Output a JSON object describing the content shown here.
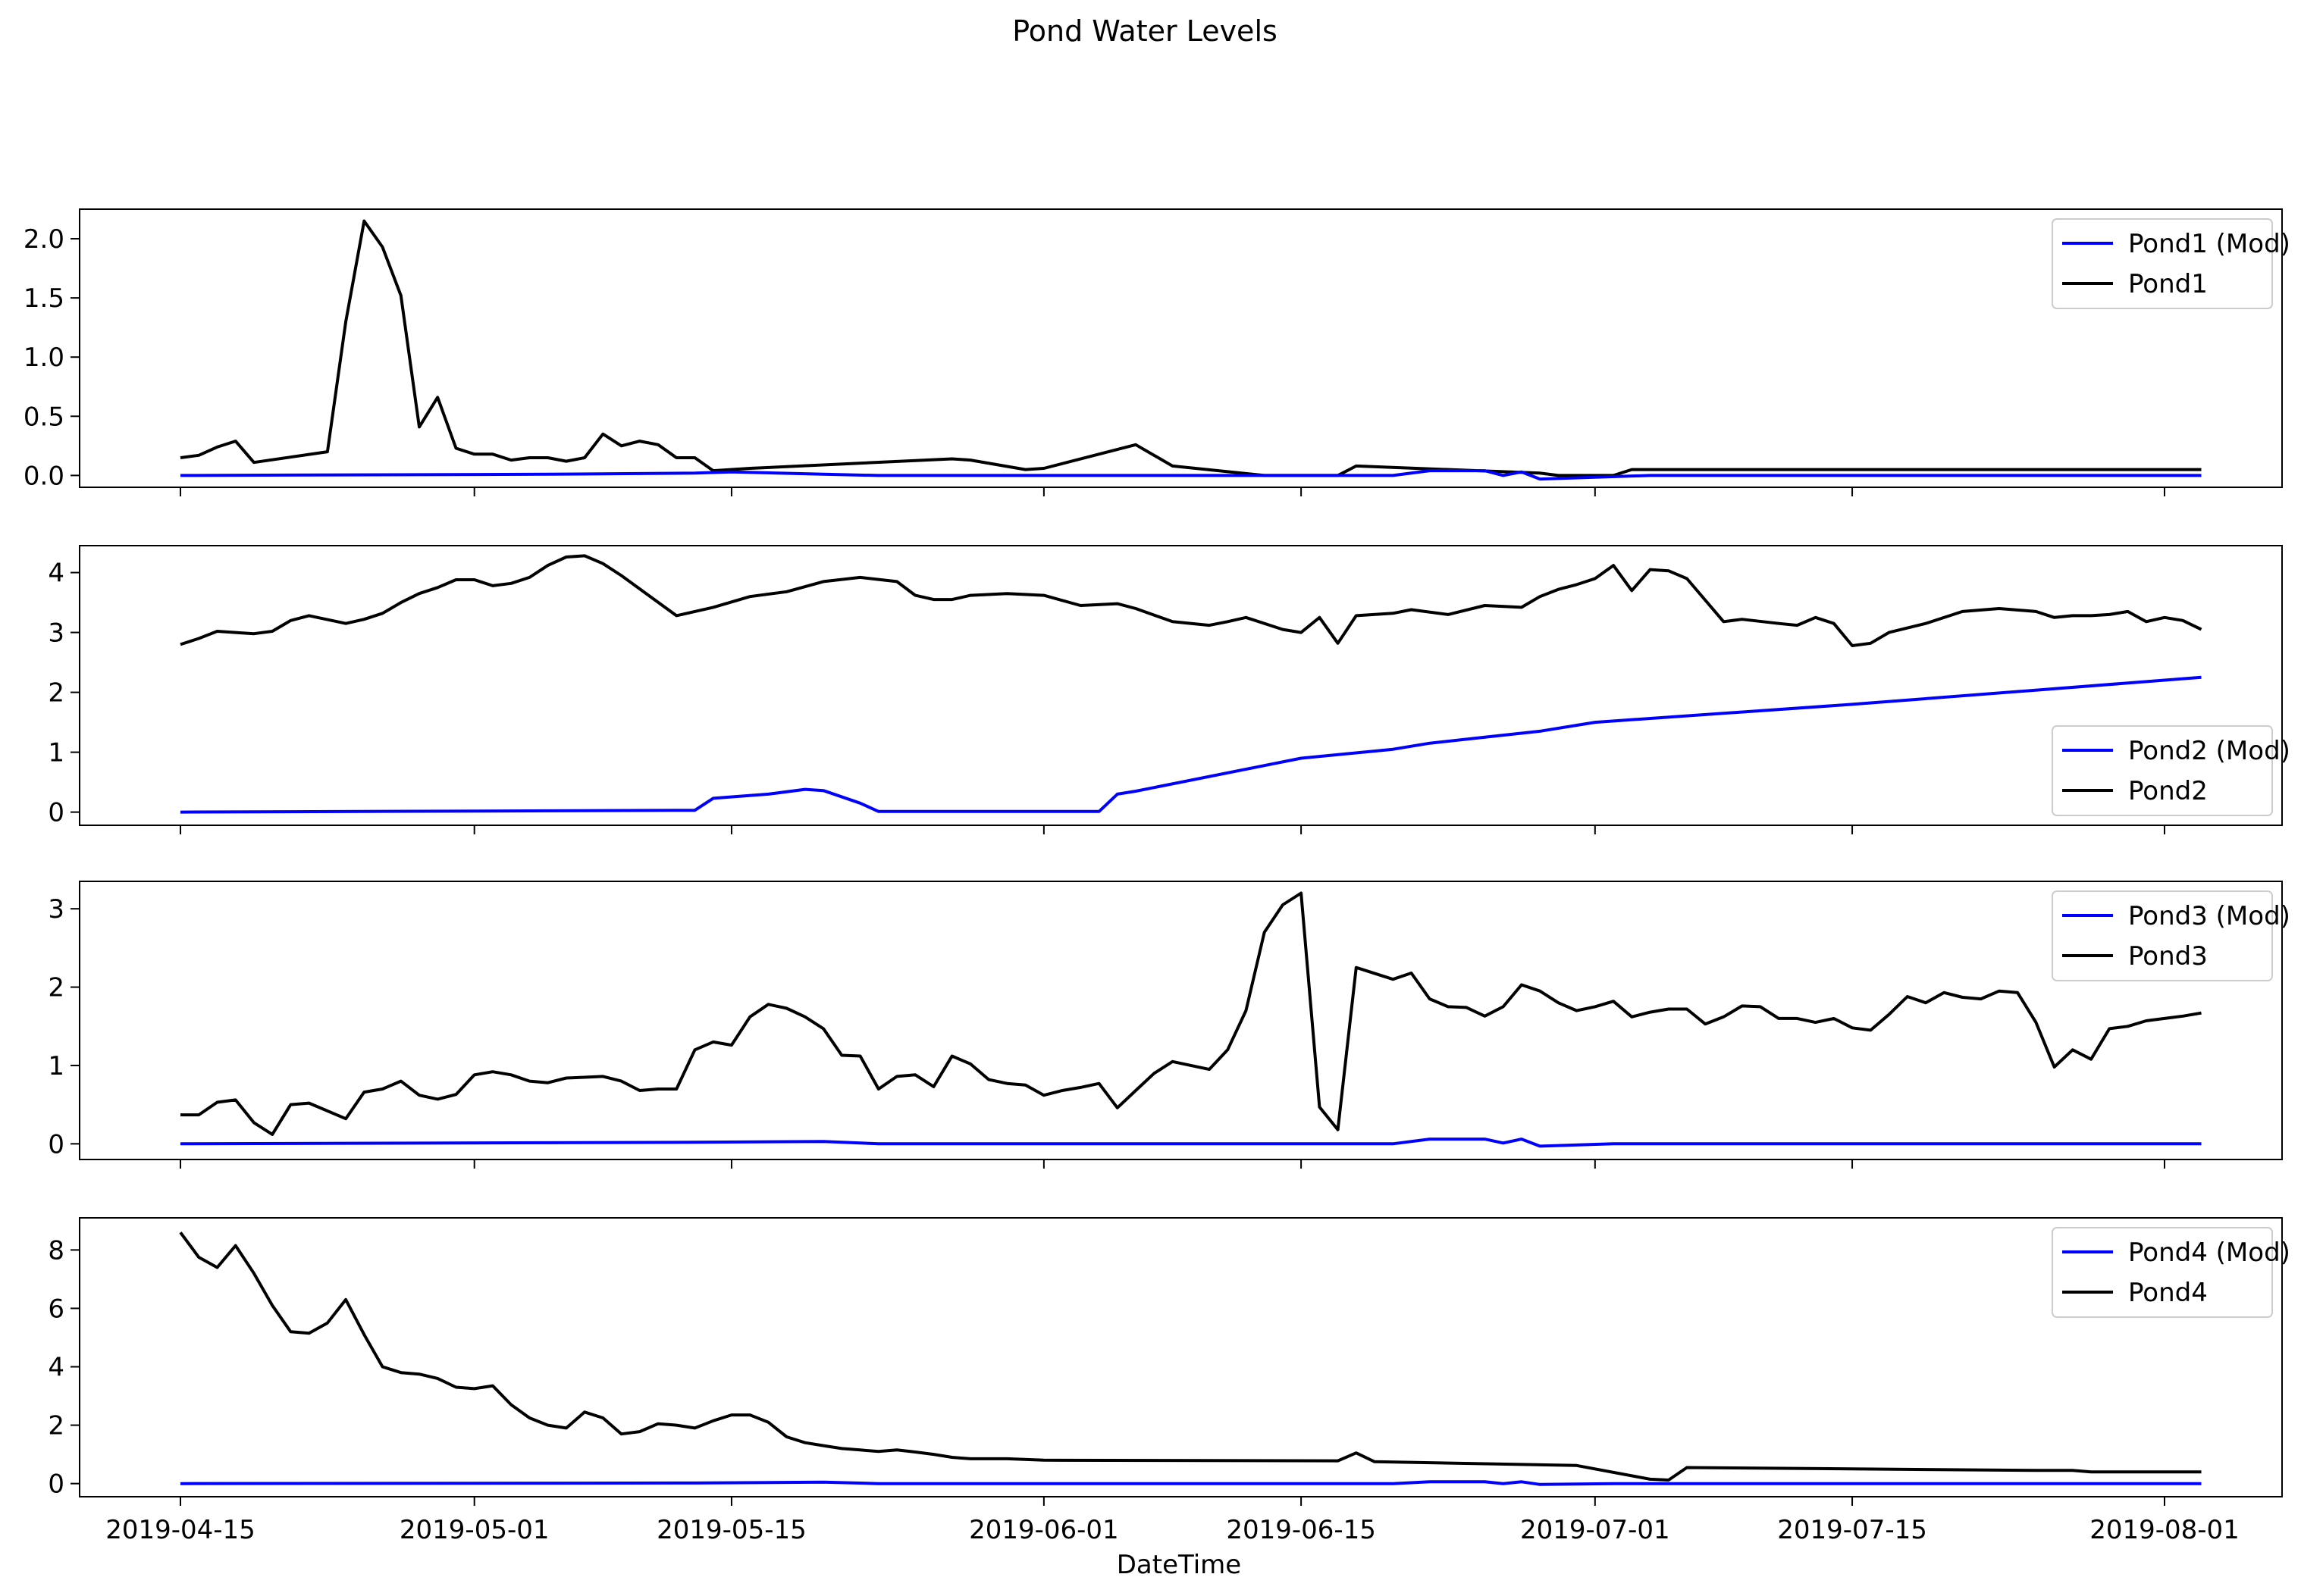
{
  "figure": {
    "title": "Pond Water Levels",
    "xlabel": "DateTime",
    "x_tick_labels": [
      "2019-04-15",
      "2019-05-01",
      "2019-05-15",
      "2019-06-01",
      "2019-06-15",
      "2019-07-01",
      "2019-07-15",
      "2019-08-01"
    ]
  },
  "chart_data": [
    {
      "type": "line",
      "legend": "upper right",
      "ylim": [
        -0.1,
        2.25
      ],
      "yticks": [
        0.0,
        0.5,
        1.0,
        1.5,
        2.0
      ],
      "ytick_labels": [
        "0.0",
        "0.5",
        "1.0",
        "1.5",
        "2.0"
      ],
      "series": [
        {
          "name": "Pond1 (Mod)",
          "color": "#0000ff",
          "x": [
            "2019-04-15",
            "2019-05-05",
            "2019-05-13",
            "2019-05-15",
            "2019-05-20",
            "2019-05-23",
            "2019-06-05",
            "2019-06-20",
            "2019-06-22",
            "2019-06-25",
            "2019-06-26",
            "2019-06-27",
            "2019-06-28",
            "2019-07-04",
            "2019-08-03"
          ],
          "y": [
            0.0,
            0.01,
            0.02,
            0.03,
            0.01,
            0.0,
            0.0,
            0.0,
            0.04,
            0.04,
            0.0,
            0.03,
            -0.03,
            0.0,
            0.0
          ]
        },
        {
          "name": "Pond1",
          "color": "#000000",
          "x": [
            "2019-04-15",
            "2019-04-16",
            "2019-04-17",
            "2019-04-18",
            "2019-04-19",
            "2019-04-23",
            "2019-04-24",
            "2019-04-25",
            "2019-04-26",
            "2019-04-27",
            "2019-04-28",
            "2019-04-29",
            "2019-04-30",
            "2019-05-01",
            "2019-05-02",
            "2019-05-03",
            "2019-05-04",
            "2019-05-05",
            "2019-05-06",
            "2019-05-07",
            "2019-05-08",
            "2019-05-09",
            "2019-05-10",
            "2019-05-11",
            "2019-05-12",
            "2019-05-13",
            "2019-05-14",
            "2019-05-16",
            "2019-05-27",
            "2019-05-28",
            "2019-05-31",
            "2019-06-01",
            "2019-06-06",
            "2019-06-08",
            "2019-06-13",
            "2019-06-16",
            "2019-06-17",
            "2019-06-18",
            "2019-06-28",
            "2019-06-29",
            "2019-06-30",
            "2019-07-01",
            "2019-07-02",
            "2019-07-03",
            "2019-08-03"
          ],
          "y": [
            0.15,
            0.17,
            0.24,
            0.29,
            0.11,
            0.2,
            1.3,
            2.15,
            1.93,
            1.52,
            0.41,
            0.66,
            0.23,
            0.18,
            0.18,
            0.13,
            0.15,
            0.15,
            0.12,
            0.15,
            0.35,
            0.25,
            0.29,
            0.26,
            0.15,
            0.15,
            0.04,
            0.06,
            0.14,
            0.13,
            0.05,
            0.06,
            0.26,
            0.08,
            0.0,
            0.0,
            0.0,
            0.08,
            0.02,
            0.0,
            0.0,
            0.0,
            0.0,
            0.05,
            0.05
          ]
        }
      ]
    },
    {
      "type": "line",
      "legend": "lower right",
      "ylim": [
        -0.22,
        4.45
      ],
      "yticks": [
        0,
        1,
        2,
        3,
        4
      ],
      "ytick_labels": [
        "0",
        "1",
        "2",
        "3",
        "4"
      ],
      "series": [
        {
          "name": "Pond2 (Mod)",
          "color": "#0000ff",
          "x": [
            "2019-04-15",
            "2019-05-13",
            "2019-05-14",
            "2019-05-17",
            "2019-05-19",
            "2019-05-20",
            "2019-05-22",
            "2019-05-23",
            "2019-06-04",
            "2019-06-05",
            "2019-06-06",
            "2019-06-15",
            "2019-06-20",
            "2019-06-22",
            "2019-06-25",
            "2019-06-28",
            "2019-07-01",
            "2019-07-15",
            "2019-08-03"
          ],
          "y": [
            0.0,
            0.03,
            0.23,
            0.3,
            0.38,
            0.36,
            0.15,
            0.01,
            0.01,
            0.3,
            0.35,
            0.9,
            1.05,
            1.15,
            1.25,
            1.35,
            1.5,
            1.8,
            2.25
          ]
        },
        {
          "name": "Pond2",
          "color": "#000000",
          "x": [
            "2019-04-15",
            "2019-04-16",
            "2019-04-17",
            "2019-04-19",
            "2019-04-20",
            "2019-04-21",
            "2019-04-22",
            "2019-04-24",
            "2019-04-25",
            "2019-04-26",
            "2019-04-27",
            "2019-04-28",
            "2019-04-29",
            "2019-04-30",
            "2019-05-01",
            "2019-05-02",
            "2019-05-03",
            "2019-05-04",
            "2019-05-05",
            "2019-05-06",
            "2019-05-07",
            "2019-05-08",
            "2019-05-09",
            "2019-05-12",
            "2019-05-14",
            "2019-05-16",
            "2019-05-18",
            "2019-05-20",
            "2019-05-22",
            "2019-05-24",
            "2019-05-25",
            "2019-05-26",
            "2019-05-27",
            "2019-05-28",
            "2019-05-30",
            "2019-06-01",
            "2019-06-03",
            "2019-06-05",
            "2019-06-06",
            "2019-06-08",
            "2019-06-10",
            "2019-06-11",
            "2019-06-12",
            "2019-06-14",
            "2019-06-15",
            "2019-06-16",
            "2019-06-17",
            "2019-06-18",
            "2019-06-20",
            "2019-06-21",
            "2019-06-23",
            "2019-06-25",
            "2019-06-27",
            "2019-06-28",
            "2019-06-29",
            "2019-06-30",
            "2019-07-01",
            "2019-07-02",
            "2019-07-03",
            "2019-07-04",
            "2019-07-05",
            "2019-07-06",
            "2019-07-08",
            "2019-07-09",
            "2019-07-11",
            "2019-07-12",
            "2019-07-13",
            "2019-07-14",
            "2019-07-15",
            "2019-07-16",
            "2019-07-17",
            "2019-07-19",
            "2019-07-21",
            "2019-07-23",
            "2019-07-25",
            "2019-07-26",
            "2019-07-27",
            "2019-07-28",
            "2019-07-29",
            "2019-07-30",
            "2019-07-31",
            "2019-08-01",
            "2019-08-02",
            "2019-08-03"
          ],
          "y": [
            2.8,
            2.9,
            3.02,
            2.98,
            3.02,
            3.2,
            3.28,
            3.15,
            3.22,
            3.32,
            3.5,
            3.65,
            3.75,
            3.88,
            3.88,
            3.78,
            3.82,
            3.92,
            4.12,
            4.26,
            4.28,
            4.15,
            3.95,
            3.28,
            3.42,
            3.6,
            3.68,
            3.85,
            3.92,
            3.85,
            3.62,
            3.55,
            3.55,
            3.62,
            3.65,
            3.62,
            3.45,
            3.48,
            3.4,
            3.18,
            3.12,
            3.18,
            3.25,
            3.05,
            3.0,
            3.25,
            2.82,
            3.28,
            3.32,
            3.38,
            3.3,
            3.45,
            3.42,
            3.6,
            3.72,
            3.8,
            3.9,
            4.12,
            3.7,
            4.05,
            4.03,
            3.9,
            3.18,
            3.22,
            3.15,
            3.12,
            3.25,
            3.15,
            2.78,
            2.82,
            3.0,
            3.15,
            3.35,
            3.4,
            3.35,
            3.25,
            3.28,
            3.28,
            3.3,
            3.35,
            3.18,
            3.25,
            3.2,
            3.05
          ]
        }
      ]
    },
    {
      "type": "line",
      "legend": "upper right",
      "ylim": [
        -0.2,
        3.35
      ],
      "yticks": [
        0,
        1,
        2,
        3
      ],
      "ytick_labels": [
        "0",
        "1",
        "2",
        "3"
      ],
      "series": [
        {
          "name": "Pond3 (Mod)",
          "color": "#0000ff",
          "x": [
            "2019-04-15",
            "2019-05-13",
            "2019-05-20",
            "2019-05-23",
            "2019-06-20",
            "2019-06-22",
            "2019-06-25",
            "2019-06-26",
            "2019-06-27",
            "2019-06-28",
            "2019-07-02",
            "2019-08-03"
          ],
          "y": [
            0.0,
            0.02,
            0.03,
            0.0,
            0.0,
            0.06,
            0.06,
            0.01,
            0.06,
            -0.03,
            0.0,
            0.0
          ]
        },
        {
          "name": "Pond3",
          "color": "#000000",
          "x": [
            "2019-04-15",
            "2019-04-16",
            "2019-04-17",
            "2019-04-18",
            "2019-04-19",
            "2019-04-20",
            "2019-04-21",
            "2019-04-22",
            "2019-04-24",
            "2019-04-25",
            "2019-04-26",
            "2019-04-27",
            "2019-04-28",
            "2019-04-29",
            "2019-04-30",
            "2019-05-01",
            "2019-05-02",
            "2019-05-03",
            "2019-05-04",
            "2019-05-05",
            "2019-05-06",
            "2019-05-07",
            "2019-05-08",
            "2019-05-09",
            "2019-05-10",
            "2019-05-11",
            "2019-05-12",
            "2019-05-13",
            "2019-05-14",
            "2019-05-15",
            "2019-05-16",
            "2019-05-17",
            "2019-05-18",
            "2019-05-19",
            "2019-05-20",
            "2019-05-21",
            "2019-05-22",
            "2019-05-23",
            "2019-05-24",
            "2019-05-25",
            "2019-05-26",
            "2019-05-27",
            "2019-05-28",
            "2019-05-29",
            "2019-05-30",
            "2019-05-31",
            "2019-06-01",
            "2019-06-02",
            "2019-06-03",
            "2019-06-04",
            "2019-06-05",
            "2019-06-06",
            "2019-06-07",
            "2019-06-08",
            "2019-06-09",
            "2019-06-10",
            "2019-06-11",
            "2019-06-12",
            "2019-06-13",
            "2019-06-14",
            "2019-06-15",
            "2019-06-16",
            "2019-06-17",
            "2019-06-18",
            "2019-06-20",
            "2019-06-21",
            "2019-06-22",
            "2019-06-23",
            "2019-06-24",
            "2019-06-25",
            "2019-06-26",
            "2019-06-27",
            "2019-06-28",
            "2019-06-29",
            "2019-06-30",
            "2019-07-01",
            "2019-07-02",
            "2019-07-03",
            "2019-07-04",
            "2019-07-05",
            "2019-07-06",
            "2019-07-07",
            "2019-07-08",
            "2019-07-09",
            "2019-07-10",
            "2019-07-11",
            "2019-07-12",
            "2019-07-13",
            "2019-07-14",
            "2019-07-15",
            "2019-07-16",
            "2019-07-17",
            "2019-07-18",
            "2019-07-19",
            "2019-07-20",
            "2019-07-21",
            "2019-07-22",
            "2019-07-23",
            "2019-07-24",
            "2019-07-25",
            "2019-07-26",
            "2019-07-27",
            "2019-07-28",
            "2019-07-29",
            "2019-07-30",
            "2019-07-31",
            "2019-08-01",
            "2019-08-02",
            "2019-08-03"
          ],
          "y": [
            0.37,
            0.37,
            0.53,
            0.56,
            0.27,
            0.12,
            0.5,
            0.52,
            0.32,
            0.66,
            0.7,
            0.8,
            0.62,
            0.57,
            0.63,
            0.88,
            0.92,
            0.88,
            0.8,
            0.78,
            0.84,
            0.85,
            0.86,
            0.8,
            0.68,
            0.7,
            0.7,
            1.2,
            1.3,
            1.26,
            1.62,
            1.78,
            1.73,
            1.62,
            1.47,
            1.13,
            1.12,
            0.7,
            0.86,
            0.88,
            0.73,
            1.12,
            1.02,
            0.82,
            0.77,
            0.75,
            0.62,
            0.68,
            0.72,
            0.77,
            0.46,
            0.68,
            0.9,
            1.05,
            1.0,
            0.95,
            1.2,
            1.7,
            2.7,
            3.05,
            3.2,
            0.47,
            0.18,
            2.25,
            2.1,
            2.18,
            1.85,
            1.75,
            1.74,
            1.63,
            1.75,
            2.03,
            1.95,
            1.8,
            1.7,
            1.75,
            1.82,
            1.62,
            1.68,
            1.72,
            1.72,
            1.53,
            1.62,
            1.76,
            1.75,
            1.6,
            1.6,
            1.55,
            1.6,
            1.48,
            1.45,
            1.65,
            1.88,
            1.8,
            1.93,
            1.87,
            1.85,
            1.95,
            1.93,
            1.55,
            0.98,
            1.2,
            1.08,
            1.47,
            1.5,
            1.57,
            1.6,
            1.63,
            1.67
          ]
        }
      ]
    },
    {
      "type": "line",
      "legend": "upper right",
      "ylim": [
        -0.45,
        9.1
      ],
      "yticks": [
        0,
        2,
        4,
        6,
        8
      ],
      "ytick_labels": [
        "0",
        "2",
        "4",
        "6",
        "8"
      ],
      "series": [
        {
          "name": "Pond4 (Mod)",
          "color": "#0000ff",
          "x": [
            "2019-04-15",
            "2019-05-13",
            "2019-05-20",
            "2019-05-23",
            "2019-06-20",
            "2019-06-22",
            "2019-06-25",
            "2019-06-26",
            "2019-06-27",
            "2019-06-28",
            "2019-07-02",
            "2019-08-03"
          ],
          "y": [
            0.0,
            0.02,
            0.05,
            0.0,
            0.0,
            0.06,
            0.06,
            0.0,
            0.06,
            -0.03,
            0.0,
            0.0
          ]
        },
        {
          "name": "Pond4",
          "color": "#000000",
          "x": [
            "2019-04-15",
            "2019-04-16",
            "2019-04-17",
            "2019-04-18",
            "2019-04-19",
            "2019-04-20",
            "2019-04-21",
            "2019-04-22",
            "2019-04-23",
            "2019-04-24",
            "2019-04-25",
            "2019-04-26",
            "2019-04-27",
            "2019-04-28",
            "2019-04-29",
            "2019-04-30",
            "2019-05-01",
            "2019-05-02",
            "2019-05-03",
            "2019-05-04",
            "2019-05-05",
            "2019-05-06",
            "2019-05-07",
            "2019-05-08",
            "2019-05-09",
            "2019-05-10",
            "2019-05-11",
            "2019-05-12",
            "2019-05-13",
            "2019-05-14",
            "2019-05-15",
            "2019-05-16",
            "2019-05-17",
            "2019-05-18",
            "2019-05-19",
            "2019-05-20",
            "2019-05-21",
            "2019-05-22",
            "2019-05-23",
            "2019-05-24",
            "2019-05-25",
            "2019-05-26",
            "2019-05-27",
            "2019-05-28",
            "2019-05-29",
            "2019-05-30",
            "2019-06-01",
            "2019-06-17",
            "2019-06-18",
            "2019-06-19",
            "2019-06-30",
            "2019-07-04",
            "2019-07-05",
            "2019-07-06",
            "2019-07-25",
            "2019-07-27",
            "2019-07-28",
            "2019-08-03"
          ],
          "y": [
            8.6,
            7.75,
            7.4,
            8.15,
            7.2,
            6.1,
            5.2,
            5.15,
            5.5,
            6.3,
            5.1,
            4.0,
            3.8,
            3.75,
            3.6,
            3.3,
            3.25,
            3.35,
            2.7,
            2.25,
            2.0,
            1.9,
            2.45,
            2.25,
            1.7,
            1.78,
            2.05,
            2.0,
            1.9,
            2.15,
            2.35,
            2.35,
            2.1,
            1.6,
            1.4,
            1.3,
            1.2,
            1.15,
            1.1,
            1.15,
            1.08,
            1.0,
            0.9,
            0.85,
            0.85,
            0.85,
            0.8,
            0.78,
            1.05,
            0.75,
            0.62,
            0.15,
            0.12,
            0.55,
            0.45,
            0.45,
            0.4,
            0.4
          ]
        }
      ]
    }
  ]
}
